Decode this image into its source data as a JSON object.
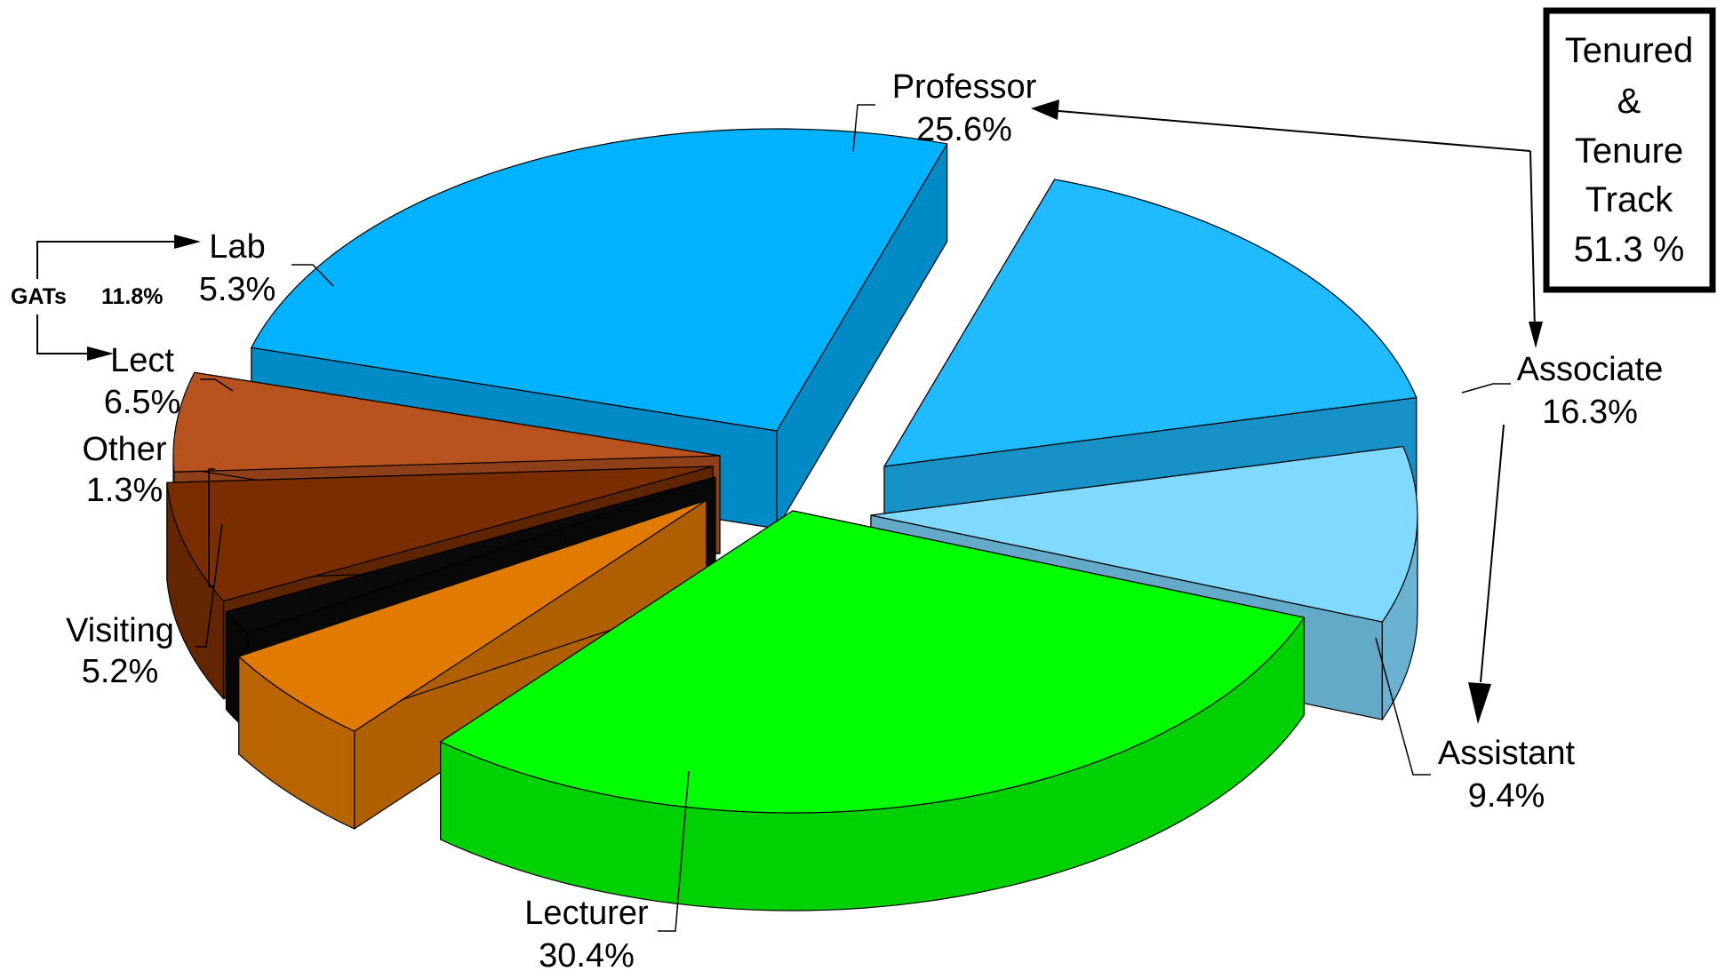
{
  "chart_data": {
    "type": "pie",
    "title": "",
    "slices": [
      {
        "label": "Professor",
        "value_label": "25.6%",
        "value": 25.6,
        "color": "#00b2ff"
      },
      {
        "label": "Associate",
        "value_label": "16.3%",
        "value": 16.3,
        "color": "#1fbaff"
      },
      {
        "label": "Assistant",
        "value_label": "9.4%",
        "value": 9.4,
        "color": "#80d9ff"
      },
      {
        "label": "Lecturer",
        "value_label": "30.4%",
        "value": 30.4,
        "color": "#00ff00"
      },
      {
        "label": "Visiting",
        "value_label": "5.2%",
        "value": 5.2,
        "color": "#e07a00"
      },
      {
        "label": "Other",
        "value_label": "1.3%",
        "value": 1.3,
        "color": "#0a0a0a"
      },
      {
        "label": "Lect",
        "value_label": "6.5%",
        "value": 6.5,
        "color": "#7a2e00"
      },
      {
        "label": "Lab",
        "value_label": "5.3%",
        "value": 5.3,
        "color": "#b8521f"
      }
    ],
    "annotations": {
      "gats": {
        "label": "GATs",
        "value_label": "11.8%"
      },
      "tenured_box": {
        "line1": "Tenured",
        "line2": "&",
        "line3": "Tenure",
        "line4": "Track",
        "line5": "51.3 %"
      }
    }
  }
}
